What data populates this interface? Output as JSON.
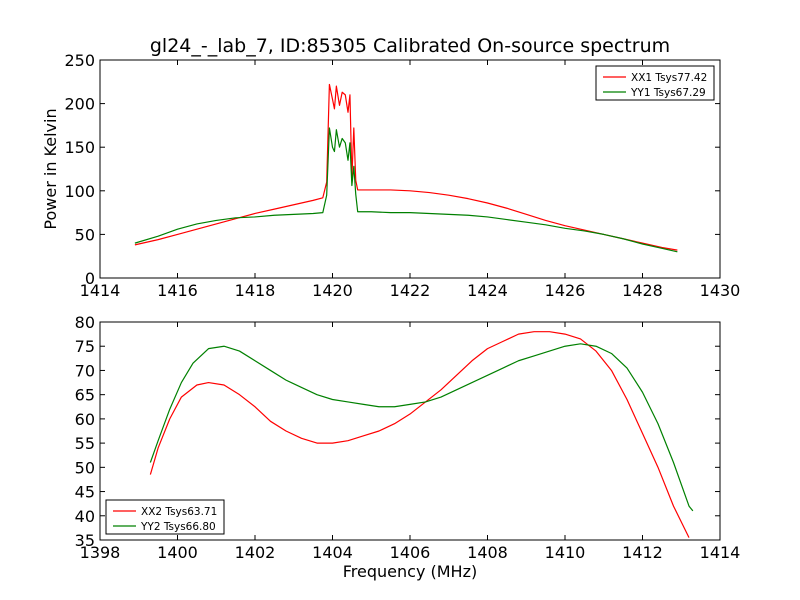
{
  "title": "gl24_-_lab_7, ID:85305 Calibrated On-source spectrum",
  "xlabel": "Frequency (MHz)",
  "chart_data": [
    {
      "type": "line",
      "ylabel": "Power in Kelvin",
      "xlim": [
        1414,
        1430
      ],
      "ylim": [
        0,
        250
      ],
      "xticks": [
        1414,
        1416,
        1418,
        1420,
        1422,
        1424,
        1426,
        1428,
        1430
      ],
      "yticks": [
        0,
        50,
        100,
        150,
        200,
        250
      ],
      "legend_position": "top-right",
      "series": [
        {
          "name": "XX1 Tsys77.42",
          "color": "#ff0000",
          "points": [
            [
              1414.9,
              38
            ],
            [
              1415.5,
              44
            ],
            [
              1416.0,
              50
            ],
            [
              1416.5,
              56
            ],
            [
              1417.0,
              62
            ],
            [
              1417.5,
              68
            ],
            [
              1418.0,
              74
            ],
            [
              1418.5,
              79
            ],
            [
              1419.0,
              84
            ],
            [
              1419.5,
              89
            ],
            [
              1419.75,
              92
            ],
            [
              1419.85,
              110
            ],
            [
              1419.92,
              222
            ],
            [
              1420.0,
              205
            ],
            [
              1420.05,
              194
            ],
            [
              1420.1,
              220
            ],
            [
              1420.18,
              198
            ],
            [
              1420.25,
              213
            ],
            [
              1420.33,
              210
            ],
            [
              1420.4,
              190
            ],
            [
              1420.45,
              210
            ],
            [
              1420.5,
              115
            ],
            [
              1420.55,
              172
            ],
            [
              1420.6,
              112
            ],
            [
              1420.65,
              101
            ],
            [
              1421.0,
              101
            ],
            [
              1421.5,
              101
            ],
            [
              1422.0,
              100
            ],
            [
              1422.5,
              98
            ],
            [
              1423.0,
              95
            ],
            [
              1423.5,
              91
            ],
            [
              1424.0,
              86
            ],
            [
              1424.5,
              80
            ],
            [
              1425.0,
              73
            ],
            [
              1425.5,
              66
            ],
            [
              1426.0,
              60
            ],
            [
              1426.5,
              55
            ],
            [
              1427.0,
              50
            ],
            [
              1427.5,
              45
            ],
            [
              1428.0,
              40
            ],
            [
              1428.5,
              35
            ],
            [
              1428.9,
              32
            ]
          ]
        },
        {
          "name": "YY1 Tsys67.29",
          "color": "#008000",
          "points": [
            [
              1414.9,
              40
            ],
            [
              1415.5,
              48
            ],
            [
              1416.0,
              56
            ],
            [
              1416.5,
              62
            ],
            [
              1417.0,
              66
            ],
            [
              1417.5,
              69
            ],
            [
              1418.0,
              70
            ],
            [
              1418.5,
              72
            ],
            [
              1419.0,
              73
            ],
            [
              1419.5,
              74
            ],
            [
              1419.75,
              75
            ],
            [
              1419.85,
              95
            ],
            [
              1419.92,
              172
            ],
            [
              1420.0,
              150
            ],
            [
              1420.05,
              145
            ],
            [
              1420.1,
              170
            ],
            [
              1420.18,
              150
            ],
            [
              1420.25,
              160
            ],
            [
              1420.33,
              155
            ],
            [
              1420.4,
              135
            ],
            [
              1420.45,
              155
            ],
            [
              1420.5,
              106
            ],
            [
              1420.55,
              128
            ],
            [
              1420.6,
              96
            ],
            [
              1420.65,
              76
            ],
            [
              1421.0,
              76
            ],
            [
              1421.5,
              75
            ],
            [
              1422.0,
              75
            ],
            [
              1422.5,
              74
            ],
            [
              1423.0,
              73
            ],
            [
              1423.5,
              72
            ],
            [
              1424.0,
              70
            ],
            [
              1424.5,
              67
            ],
            [
              1425.0,
              64
            ],
            [
              1425.5,
              61
            ],
            [
              1426.0,
              57
            ],
            [
              1426.5,
              54
            ],
            [
              1427.0,
              50
            ],
            [
              1427.5,
              45
            ],
            [
              1428.0,
              39
            ],
            [
              1428.5,
              34
            ],
            [
              1428.9,
              30
            ]
          ]
        }
      ]
    },
    {
      "type": "line",
      "ylabel": "",
      "xlim": [
        1398,
        1414
      ],
      "ylim": [
        35,
        80
      ],
      "xticks": [
        1398,
        1400,
        1402,
        1404,
        1406,
        1408,
        1410,
        1412,
        1414
      ],
      "yticks": [
        35,
        40,
        45,
        50,
        55,
        60,
        65,
        70,
        75,
        80
      ],
      "legend_position": "bottom-left",
      "series": [
        {
          "name": "XX2 Tsys63.71",
          "color": "#ff0000",
          "points": [
            [
              1399.3,
              48.5
            ],
            [
              1399.5,
              54
            ],
            [
              1399.8,
              60
            ],
            [
              1400.1,
              64.5
            ],
            [
              1400.5,
              67
            ],
            [
              1400.8,
              67.5
            ],
            [
              1401.2,
              67
            ],
            [
              1401.6,
              65
            ],
            [
              1402.0,
              62.5
            ],
            [
              1402.4,
              59.5
            ],
            [
              1402.8,
              57.5
            ],
            [
              1403.2,
              56
            ],
            [
              1403.6,
              55
            ],
            [
              1404.0,
              55
            ],
            [
              1404.4,
              55.5
            ],
            [
              1404.8,
              56.5
            ],
            [
              1405.2,
              57.5
            ],
            [
              1405.6,
              59
            ],
            [
              1406.0,
              61
            ],
            [
              1406.4,
              63.5
            ],
            [
              1406.8,
              66
            ],
            [
              1407.2,
              69
            ],
            [
              1407.6,
              72
            ],
            [
              1408.0,
              74.5
            ],
            [
              1408.4,
              76
            ],
            [
              1408.8,
              77.5
            ],
            [
              1409.2,
              78
            ],
            [
              1409.6,
              78
            ],
            [
              1410.0,
              77.5
            ],
            [
              1410.4,
              76.5
            ],
            [
              1410.8,
              74
            ],
            [
              1411.2,
              70
            ],
            [
              1411.6,
              64
            ],
            [
              1412.0,
              57
            ],
            [
              1412.4,
              50
            ],
            [
              1412.8,
              42
            ],
            [
              1413.2,
              35.5
            ]
          ]
        },
        {
          "name": "YY2 Tsys66.80",
          "color": "#008000",
          "points": [
            [
              1399.3,
              51
            ],
            [
              1399.5,
              55.5
            ],
            [
              1399.8,
              62
            ],
            [
              1400.1,
              67.5
            ],
            [
              1400.4,
              71.5
            ],
            [
              1400.8,
              74.5
            ],
            [
              1401.2,
              75
            ],
            [
              1401.6,
              74
            ],
            [
              1402.0,
              72
            ],
            [
              1402.4,
              70
            ],
            [
              1402.8,
              68
            ],
            [
              1403.2,
              66.5
            ],
            [
              1403.6,
              65
            ],
            [
              1404.0,
              64
            ],
            [
              1404.4,
              63.5
            ],
            [
              1404.8,
              63
            ],
            [
              1405.2,
              62.5
            ],
            [
              1405.6,
              62.5
            ],
            [
              1406.0,
              63
            ],
            [
              1406.4,
              63.5
            ],
            [
              1406.8,
              64.5
            ],
            [
              1407.2,
              66
            ],
            [
              1407.6,
              67.5
            ],
            [
              1408.0,
              69
            ],
            [
              1408.4,
              70.5
            ],
            [
              1408.8,
              72
            ],
            [
              1409.2,
              73
            ],
            [
              1409.6,
              74
            ],
            [
              1410.0,
              75
            ],
            [
              1410.4,
              75.5
            ],
            [
              1410.8,
              75
            ],
            [
              1411.2,
              73.5
            ],
            [
              1411.6,
              70.5
            ],
            [
              1412.0,
              65.5
            ],
            [
              1412.4,
              59
            ],
            [
              1412.8,
              51
            ],
            [
              1413.2,
              42
            ],
            [
              1413.3,
              41
            ]
          ]
        }
      ]
    }
  ]
}
